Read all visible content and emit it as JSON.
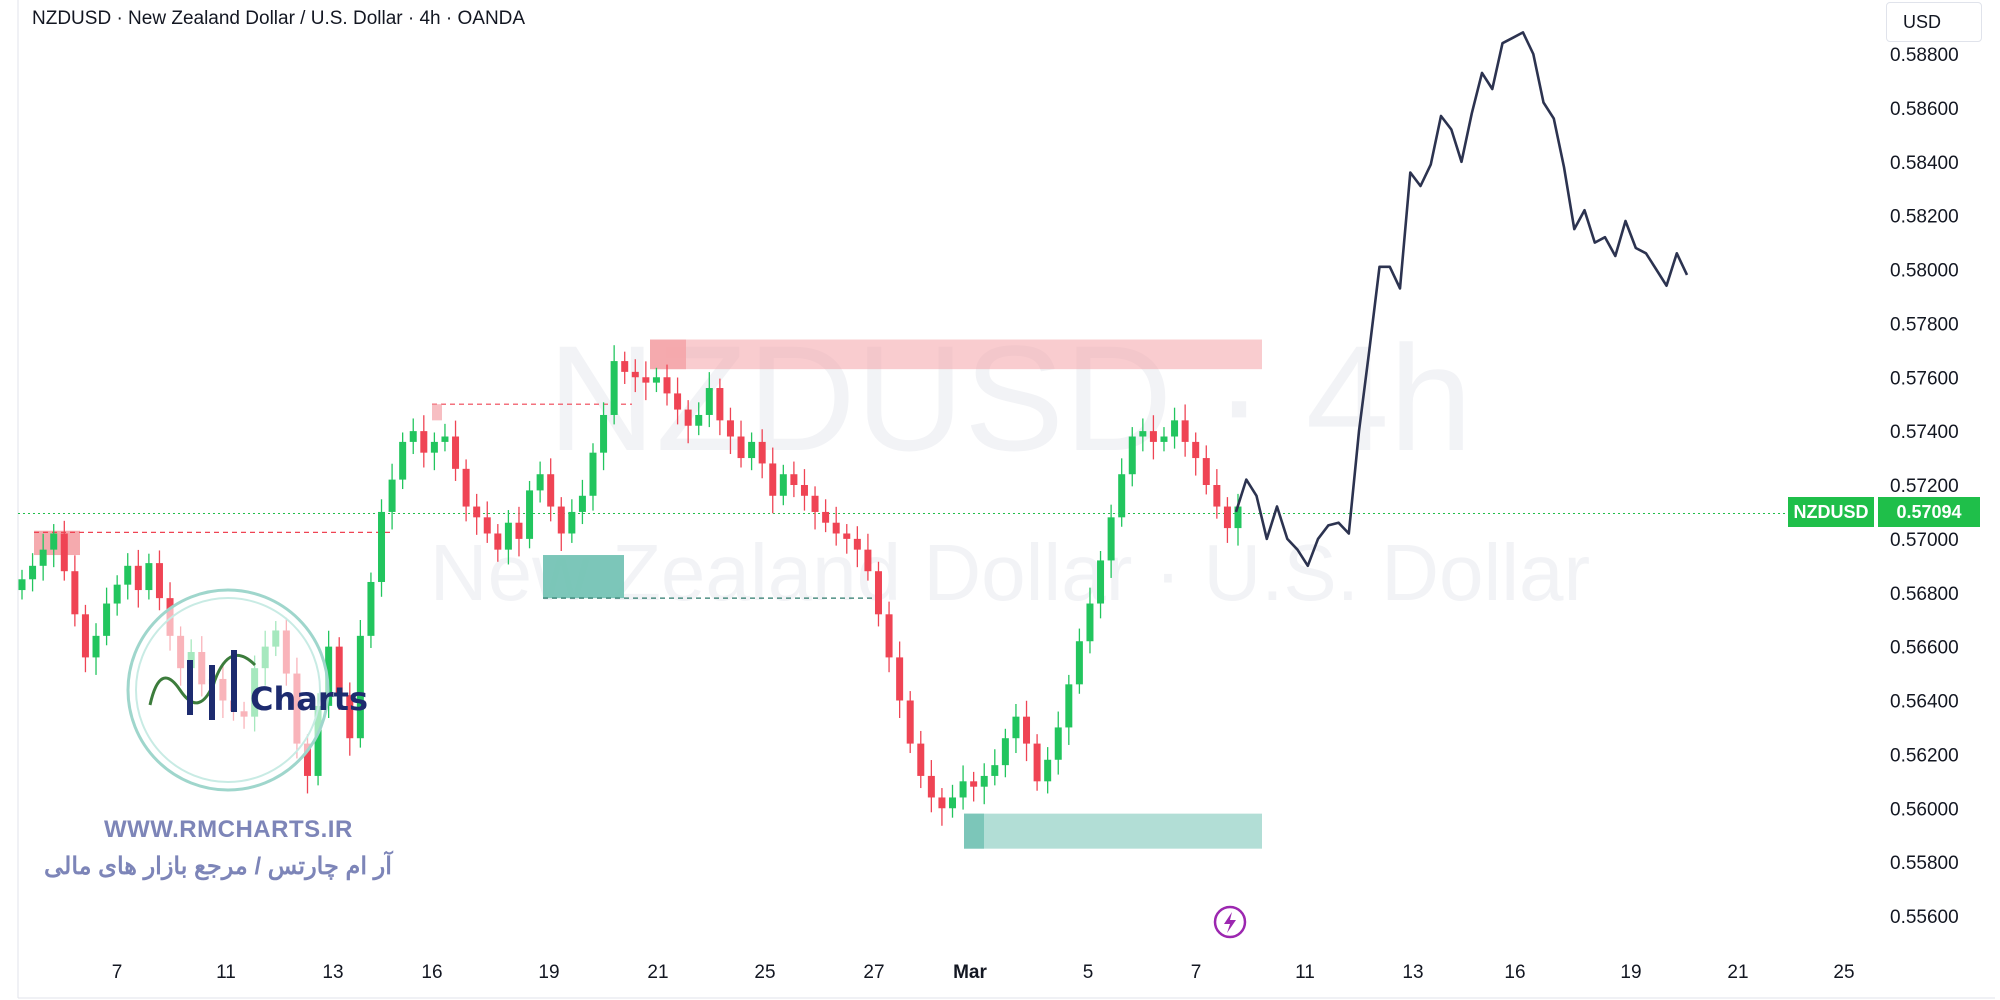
{
  "header": {
    "title": "NZDUSD · New Zealand Dollar / U.S. Dollar · 4h · OANDA",
    "currency_button": "USD"
  },
  "price_tag": {
    "symbol": "NZDUSD",
    "value": "0.57094"
  },
  "watermark": {
    "line1": "NZDUSD · 4h",
    "line2": "New Zealand Dollar · U.S. Dollar"
  },
  "branding": {
    "logo_text": "Charts",
    "website": "WWW.RMCHARTS.IR",
    "tagline_fa": "آر ام چارتس / مرجع بازار های مالی"
  },
  "colors": {
    "up": "#22c55e",
    "down": "#ef4454",
    "projection": "#2c3350",
    "price_line": "#1fbf4a",
    "demand": "#72c2b4",
    "supply": "#f4a3a8"
  },
  "chart_data": {
    "type": "candlestick",
    "symbol": "NZDUSD",
    "timeframe": "4h",
    "current_price": 0.57094,
    "y_axis": {
      "ticks": [
        "0.58800",
        "0.58600",
        "0.58400",
        "0.58200",
        "0.58000",
        "0.57800",
        "0.57600",
        "0.57400",
        "0.57200",
        "0.57000",
        "0.56800",
        "0.56600",
        "0.56400",
        "0.56200",
        "0.56000",
        "0.55800",
        "0.55600"
      ],
      "range": [
        0.5543,
        0.5892
      ]
    },
    "x_axis": {
      "ticks": [
        "7",
        "11",
        "13",
        "16",
        "19",
        "21",
        "25",
        "27",
        "Mar",
        "5",
        "7",
        "11",
        "13",
        "16",
        "19",
        "21",
        "25"
      ]
    },
    "candles_close_path": [
      0.5685,
      0.569,
      0.5696,
      0.5702,
      0.5688,
      0.5672,
      0.5656,
      0.5664,
      0.5676,
      0.5683,
      0.569,
      0.5681,
      0.5691,
      0.5678,
      0.5664,
      0.5652,
      0.5658,
      0.5646,
      0.5648,
      0.564,
      0.5636,
      0.5634,
      0.5652,
      0.566,
      0.5666,
      0.565,
      0.5624,
      0.5612,
      0.5638,
      0.566,
      0.5642,
      0.5626,
      0.5664,
      0.5684,
      0.571,
      0.5722,
      0.5736,
      0.574,
      0.5732,
      0.5736,
      0.5738,
      0.5726,
      0.5712,
      0.5708,
      0.5702,
      0.5696,
      0.5706,
      0.57,
      0.5718,
      0.5724,
      0.5712,
      0.5702,
      0.571,
      0.5716,
      0.5732,
      0.5746,
      0.5766,
      0.5762,
      0.576,
      0.5758,
      0.576,
      0.5754,
      0.5748,
      0.5742,
      0.5746,
      0.5756,
      0.5744,
      0.5738,
      0.573,
      0.5736,
      0.5728,
      0.5716,
      0.5724,
      0.572,
      0.5716,
      0.571,
      0.5706,
      0.5702,
      0.57,
      0.5696,
      0.5688,
      0.5672,
      0.5656,
      0.564,
      0.5624,
      0.5612,
      0.5604,
      0.56,
      0.5604,
      0.561,
      0.5608,
      0.5612,
      0.5616,
      0.5626,
      0.5634,
      0.5624,
      0.561,
      0.5618,
      0.563,
      0.5646,
      0.5662,
      0.5676,
      0.5692,
      0.5708,
      0.5724,
      0.5738,
      0.574,
      0.5736,
      0.5738,
      0.5744,
      0.5736,
      0.573,
      0.572,
      0.5712,
      0.5704,
      0.5712
    ],
    "projection": [
      [
        "Mar 8",
        0.571
      ],
      [
        "Mar 8",
        0.5722
      ],
      [
        "Mar 8",
        0.5716
      ],
      [
        "Mar 8",
        0.57
      ],
      [
        "Mar 9",
        0.5712
      ],
      [
        "Mar 9",
        0.57
      ],
      [
        "Mar 10",
        0.5696
      ],
      [
        "Mar 10",
        0.569
      ],
      [
        "Mar 10",
        0.57
      ],
      [
        "Mar 11",
        0.5705
      ],
      [
        "Mar 11",
        0.5706
      ],
      [
        "Mar 11",
        0.5702
      ],
      [
        "Mar 12",
        0.574
      ],
      [
        "Mar 12",
        0.577
      ],
      [
        "Mar 12",
        0.5801
      ],
      [
        "Mar 12",
        0.5801
      ],
      [
        "Mar 13",
        0.5793
      ],
      [
        "Mar 13",
        0.5836
      ],
      [
        "Mar 13",
        0.5831
      ],
      [
        "Mar 14",
        0.5839
      ],
      [
        "Mar 14",
        0.5857
      ],
      [
        "Mar 14",
        0.5852
      ],
      [
        "Mar 15",
        0.584
      ],
      [
        "Mar 15",
        0.5858
      ],
      [
        "Mar 15",
        0.5873
      ],
      [
        "Mar 15",
        0.5867
      ],
      [
        "Mar 16",
        0.5884
      ],
      [
        "Mar 16",
        0.5886
      ],
      [
        "Mar 16",
        0.5888
      ],
      [
        "Mar 17",
        0.588
      ],
      [
        "Mar 17",
        0.5862
      ],
      [
        "Mar 17",
        0.5856
      ],
      [
        "Mar 17",
        0.5838
      ],
      [
        "Mar 18",
        0.5815
      ],
      [
        "Mar 18",
        0.5822
      ],
      [
        "Mar 18",
        0.581
      ],
      [
        "Mar 18",
        0.5812
      ],
      [
        "Mar 19",
        0.5805
      ],
      [
        "Mar 19",
        0.5818
      ],
      [
        "Mar 19",
        0.5808
      ],
      [
        "Mar 19",
        0.5806
      ],
      [
        "Mar 20",
        0.58
      ],
      [
        "Mar 20",
        0.5794
      ],
      [
        "Mar 20",
        0.5806
      ],
      [
        "Mar 20",
        0.5798
      ]
    ],
    "zones": [
      {
        "kind": "supply",
        "top": 0.5774,
        "bottom": 0.5763
      },
      {
        "kind": "supply",
        "top": 0.5703,
        "bottom": 0.5694
      },
      {
        "kind": "demand",
        "top": 0.5694,
        "bottom": 0.5678
      },
      {
        "kind": "demand",
        "top": 0.5598,
        "bottom": 0.5585
      }
    ]
  }
}
